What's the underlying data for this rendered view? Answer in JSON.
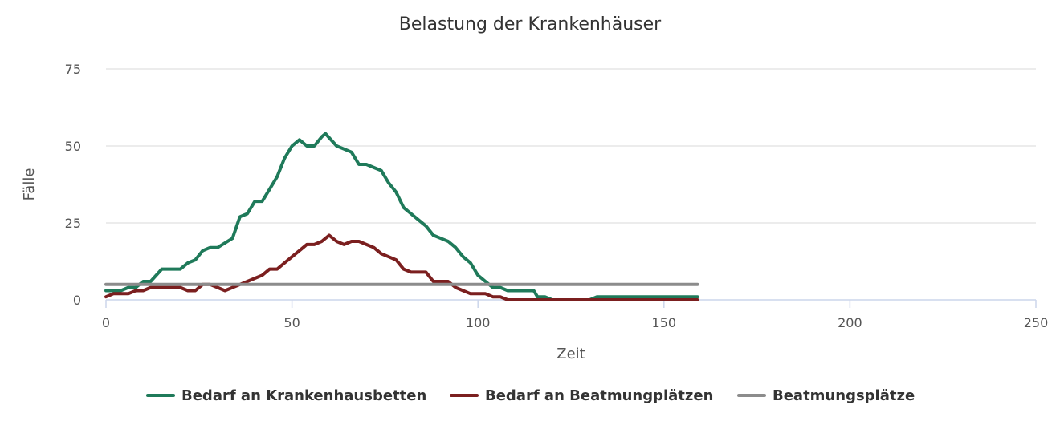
{
  "chart_data": {
    "type": "line",
    "title": "Belastung der Krankenhäuser",
    "xlabel": "Zeit",
    "ylabel": "Fälle",
    "xlim": [
      0,
      250
    ],
    "ylim": [
      0,
      75
    ],
    "xticks": [
      0,
      50,
      100,
      150,
      200,
      250
    ],
    "yticks": [
      0,
      25,
      50,
      75
    ],
    "grid": "horizontal",
    "legend_position": "bottom-center",
    "series": [
      {
        "name": "Bedarf an Krankenhausbetten",
        "color": "#1f7a5a",
        "x": [
          0,
          4,
          6,
          8,
          10,
          12,
          15,
          20,
          22,
          24,
          26,
          28,
          30,
          34,
          36,
          38,
          40,
          42,
          44,
          46,
          48,
          50,
          52,
          54,
          56,
          58,
          59,
          62,
          64,
          66,
          68,
          70,
          72,
          74,
          76,
          78,
          80,
          82,
          84,
          86,
          88,
          90,
          92,
          94,
          96,
          98,
          100,
          102,
          104,
          106,
          108,
          110,
          115,
          116,
          118,
          120,
          130,
          132,
          140,
          150,
          159
        ],
        "y": [
          3,
          3,
          4,
          4,
          6,
          6,
          10,
          10,
          12,
          13,
          16,
          17,
          17,
          20,
          27,
          28,
          32,
          32,
          36,
          40,
          46,
          50,
          52,
          50,
          50,
          53,
          54,
          50,
          49,
          48,
          44,
          44,
          43,
          42,
          38,
          35,
          30,
          28,
          26,
          24,
          21,
          20,
          19,
          17,
          14,
          12,
          8,
          6,
          4,
          4,
          3,
          3,
          3,
          1,
          1,
          0,
          0,
          1,
          1,
          1,
          1
        ]
      },
      {
        "name": "Bedarf an Beatmungplätzen",
        "color": "#7b1f1f",
        "x": [
          0,
          2,
          6,
          8,
          10,
          12,
          20,
          22,
          24,
          26,
          28,
          30,
          32,
          34,
          36,
          38,
          40,
          42,
          44,
          46,
          48,
          50,
          52,
          54,
          56,
          58,
          60,
          62,
          64,
          66,
          68,
          70,
          72,
          74,
          76,
          78,
          80,
          82,
          84,
          86,
          88,
          90,
          92,
          94,
          96,
          98,
          100,
          102,
          104,
          106,
          108,
          110,
          159
        ],
        "y": [
          1,
          2,
          2,
          3,
          3,
          4,
          4,
          3,
          3,
          5,
          5,
          4,
          3,
          4,
          5,
          6,
          7,
          8,
          10,
          10,
          12,
          14,
          16,
          18,
          18,
          19,
          21,
          19,
          18,
          19,
          19,
          18,
          17,
          15,
          14,
          13,
          10,
          9,
          9,
          9,
          6,
          6,
          6,
          4,
          3,
          2,
          2,
          2,
          1,
          1,
          0,
          0,
          0
        ]
      },
      {
        "name": "Beatmungsplätze",
        "color": "#8c8c8c",
        "x": [
          0,
          159
        ],
        "y": [
          5,
          5
        ]
      }
    ]
  }
}
